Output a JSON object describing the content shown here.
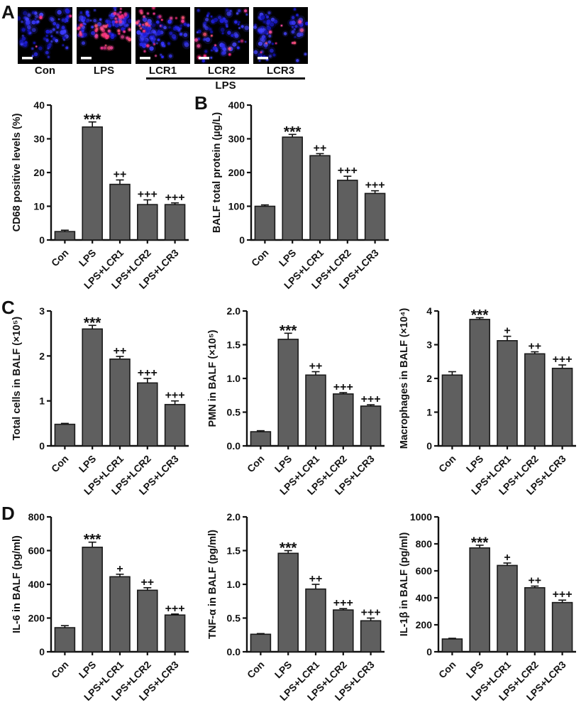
{
  "panels": {
    "a": "A",
    "b": "B",
    "c": "C",
    "d": "D"
  },
  "panel_a": {
    "labels": [
      "Con",
      "LPS",
      "LCR1",
      "LCR2",
      "LCR3"
    ],
    "group_label": "LPS",
    "images": [
      {
        "name": "Con",
        "blue": 95,
        "red": 3
      },
      {
        "name": "LPS",
        "blue": 90,
        "red": 58
      },
      {
        "name": "LCR1",
        "blue": 90,
        "red": 32
      },
      {
        "name": "LCR2",
        "blue": 82,
        "red": 11
      },
      {
        "name": "LCR3",
        "blue": 88,
        "red": 9
      }
    ],
    "colors": {
      "background": "#000000",
      "nucleus": "#2a2af0",
      "marker": "#ff2e7e",
      "scalebar": "#ffffff"
    }
  },
  "chart_style": {
    "bar_fill": "#5f5f5f",
    "bar_stroke": "#1a1a1a",
    "axis_color": "#111111",
    "text_color": "#111111"
  },
  "chart_data": [
    {
      "type": "bar",
      "panel": "A",
      "ylabel": "CD68 positive levels (%)",
      "categories": [
        "Con",
        "LPS",
        "LPS+LCR1",
        "LPS+LCR2",
        "LPS+LCR3"
      ],
      "values": [
        2.5,
        33.5,
        16.5,
        10.5,
        10.5
      ],
      "errors": [
        0.4,
        1.5,
        1.3,
        1.4,
        0.5
      ],
      "sig": [
        "",
        "***",
        "++",
        "+++",
        "+++"
      ],
      "ylim": [
        0,
        40
      ],
      "yticks": [
        0,
        10,
        20,
        30,
        40
      ]
    },
    {
      "type": "bar",
      "panel": "B",
      "ylabel": "BALF total protein (µg/L)",
      "categories": [
        "Con",
        "LPS",
        "LPS+LCR1",
        "LPS+LCR2",
        "LPS+LCR3"
      ],
      "values": [
        100,
        305,
        250,
        177,
        138
      ],
      "errors": [
        4,
        8,
        6,
        12,
        8
      ],
      "sig": [
        "",
        "***",
        "++",
        "+++",
        "+++"
      ],
      "ylim": [
        0,
        400
      ],
      "yticks": [
        0,
        100,
        200,
        300,
        400
      ]
    },
    {
      "type": "bar",
      "panel": "C",
      "ylabel": "Total cells in BALF (×10⁵)",
      "categories": [
        "Con",
        "LPS",
        "LPS+LCR1",
        "LPS+LCR2",
        "LPS+LCR3"
      ],
      "values": [
        0.48,
        2.6,
        1.93,
        1.4,
        0.92
      ],
      "errors": [
        0.02,
        0.08,
        0.06,
        0.1,
        0.08
      ],
      "sig": [
        "",
        "***",
        "++",
        "+++",
        "+++"
      ],
      "ylim": [
        0,
        3
      ],
      "yticks": [
        0,
        1,
        2,
        3
      ]
    },
    {
      "type": "bar",
      "panel": "C",
      "ylabel": "PMN in BALF (×10⁵)",
      "categories": [
        "Con",
        "LPS",
        "LPS+LCR1",
        "LPS+LCR2",
        "LPS+LCR3"
      ],
      "values": [
        0.21,
        1.58,
        1.05,
        0.77,
        0.59
      ],
      "errors": [
        0.015,
        0.09,
        0.05,
        0.02,
        0.02
      ],
      "sig": [
        "",
        "***",
        "++",
        "+++",
        "+++"
      ],
      "ylim": [
        0,
        2
      ],
      "yticks": [
        0,
        0.5,
        1,
        1.5,
        2
      ],
      "ytick_labels": [
        "0.0",
        "0.5",
        "1.0",
        "1.5",
        "2.0"
      ]
    },
    {
      "type": "bar",
      "panel": "C",
      "ylabel": "Macrophages in BALF (×10⁴)",
      "categories": [
        "Con",
        "LPS",
        "LPS+LCR1",
        "LPS+LCR2",
        "LPS+LCR3"
      ],
      "values": [
        2.1,
        3.75,
        3.12,
        2.73,
        2.3
      ],
      "errors": [
        0.1,
        0.05,
        0.13,
        0.06,
        0.1
      ],
      "sig": [
        "",
        "***",
        "+",
        "++",
        "+++"
      ],
      "ylim": [
        0,
        4
      ],
      "yticks": [
        0,
        1,
        2,
        3,
        4
      ]
    },
    {
      "type": "bar",
      "panel": "D",
      "ylabel": "IL-6 in BALF (pg/ml)",
      "categories": [
        "Con",
        "LPS",
        "LPS+LCR1",
        "LPS+LCR2",
        "LPS+LCR3"
      ],
      "values": [
        143,
        620,
        445,
        365,
        218
      ],
      "errors": [
        12,
        30,
        15,
        15,
        6
      ],
      "sig": [
        "",
        "***",
        "+",
        "++",
        "+++"
      ],
      "ylim": [
        0,
        800
      ],
      "yticks": [
        0,
        200,
        400,
        600,
        800
      ]
    },
    {
      "type": "bar",
      "panel": "D",
      "ylabel": "TNF-α in BALF (pg/ml)",
      "categories": [
        "Con",
        "LPS",
        "LPS+LCR1",
        "LPS+LCR2",
        "LPS+LCR3"
      ],
      "values": [
        0.26,
        1.46,
        0.93,
        0.62,
        0.46
      ],
      "errors": [
        0.01,
        0.04,
        0.07,
        0.02,
        0.04
      ],
      "sig": [
        "",
        "***",
        "++",
        "+++",
        "+++"
      ],
      "ylim": [
        0,
        2
      ],
      "yticks": [
        0,
        0.5,
        1,
        1.5,
        2
      ],
      "ytick_labels": [
        "0.0",
        "0.5",
        "1.0",
        "1.5",
        "2.0"
      ]
    },
    {
      "type": "bar",
      "panel": "D",
      "ylabel": "IL-1β in BALF (pg/ml)",
      "categories": [
        "Con",
        "LPS",
        "LPS+LCR1",
        "LPS+LCR2",
        "LPS+LCR3"
      ],
      "values": [
        95,
        770,
        640,
        475,
        365
      ],
      "errors": [
        5,
        20,
        18,
        12,
        18
      ],
      "sig": [
        "",
        "***",
        "+",
        "++",
        "+++"
      ],
      "ylim": [
        0,
        1000
      ],
      "yticks": [
        0,
        200,
        400,
        600,
        800,
        1000
      ]
    }
  ]
}
